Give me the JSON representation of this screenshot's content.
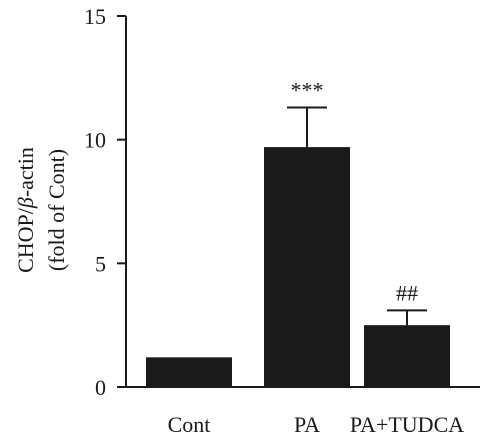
{
  "chart_data": {
    "type": "bar",
    "categories": [
      "Cont",
      "PA",
      "PA+TUDCA"
    ],
    "values": [
      1.2,
      9.7,
      2.5
    ],
    "errors": [
      0,
      1.6,
      0.6
    ],
    "annotations": [
      "",
      "***",
      "##"
    ],
    "ylabel_line1_a": "CHOP/",
    "ylabel_line1_beta": "β",
    "ylabel_line1_b": "-actin",
    "ylabel_line2": "(fold of Cont)",
    "ylim": [
      0,
      15
    ],
    "yticks": [
      0,
      5,
      10,
      15
    ],
    "bar_color": "#1a1a1a",
    "legend": "none",
    "grid": false
  }
}
